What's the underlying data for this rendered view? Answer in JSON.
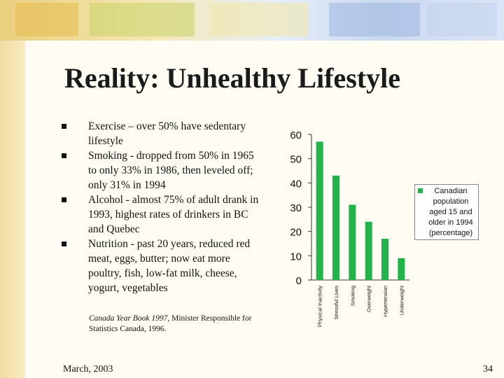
{
  "title": "Reality: Unhealthy Lifestyle",
  "bullets": [
    "Exercise – over 50% have sedentary lifestyle",
    "Smoking - dropped from 50% in 1965 to only 33% in 1986, then leveled off; only 31% in 1994",
    "Alcohol - almost 75% of adult drank in 1993, highest rates of drinkers in BC and Quebec",
    "Nutrition - past 20 years, reduced red meat, eggs, butter;  now eat more poultry, fish, low-fat milk, cheese, yogurt, vegetables"
  ],
  "citation": {
    "source_title": "Canada Year Book 1997,",
    "rest": " Minister Responsible for Statistics Canada, 1996."
  },
  "footer": {
    "date": "March, 2003",
    "page": "34"
  },
  "colors": {
    "bar": "#22b44a",
    "background": "#fbf1cf"
  },
  "chart_data": {
    "type": "bar",
    "categories": [
      "Physical Inactivity",
      "Stressful Lives",
      "Smoking",
      "Overweight",
      "Hypertension",
      "Underweight"
    ],
    "series": [
      {
        "name": "Canadian population aged 15 and older in 1994 (percentage)",
        "values": [
          57,
          43,
          31,
          24,
          17,
          9
        ]
      }
    ],
    "yticks": [
      0,
      10,
      20,
      30,
      40,
      50,
      60
    ],
    "ylim": [
      0,
      60
    ],
    "legend": "right",
    "grid": false,
    "title": "",
    "xlabel": "",
    "ylabel": ""
  }
}
